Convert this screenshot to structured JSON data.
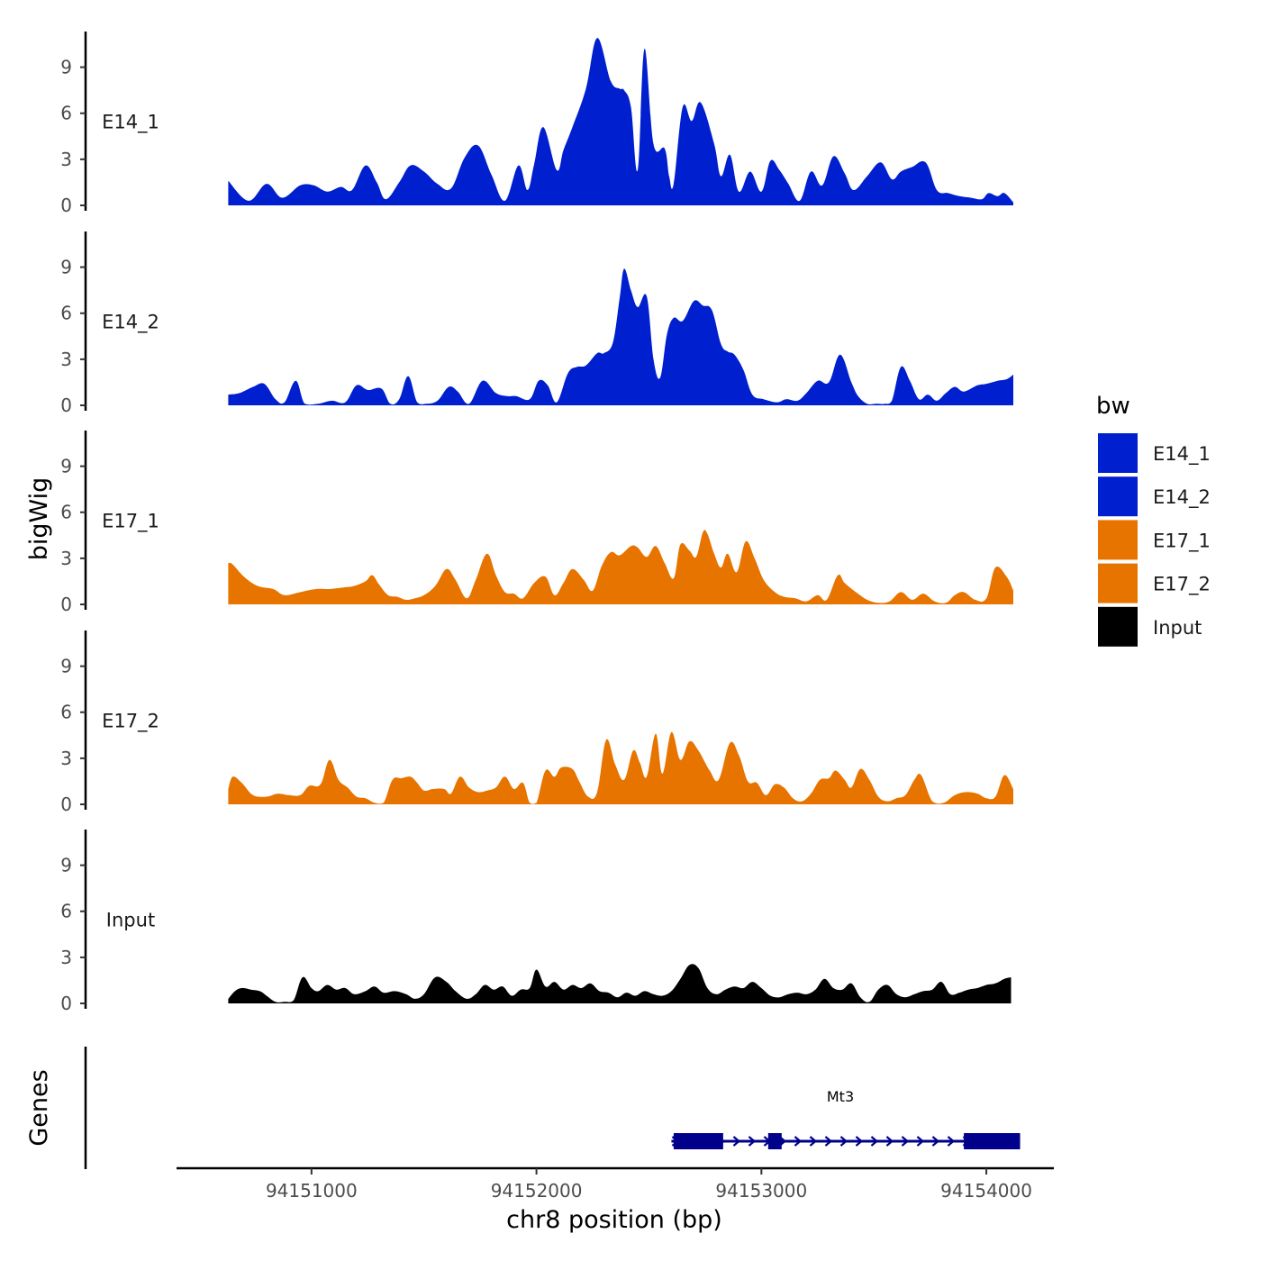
{
  "chart_data": {
    "type": "area",
    "xlabel": "chr8 position (bp)",
    "ylabel": "bigWig",
    "genes_label": "Genes",
    "xlim": [
      94150400,
      94154300
    ],
    "ylim": [
      0,
      11.5
    ],
    "x_ticks": [
      94151000,
      94152000,
      94153000,
      94154000
    ],
    "y_ticks": [
      0,
      3,
      6,
      9
    ],
    "legend": {
      "title": "bw",
      "items": [
        {
          "label": "E14_1",
          "color": "#0020d0"
        },
        {
          "label": "E14_2",
          "color": "#0020d0"
        },
        {
          "label": "E17_1",
          "color": "#e87400"
        },
        {
          "label": "E17_2",
          "color": "#e87400"
        },
        {
          "label": "Input",
          "color": "#000000"
        }
      ]
    },
    "series": [
      {
        "name": "E14_1",
        "color": "#0020d0",
        "x": [
          94150630,
          94150720,
          94150800,
          94150870,
          94150950,
          94151010,
          94151070,
          94151130,
          94151180,
          94151240,
          94151290,
          94151330,
          94151390,
          94151440,
          94151500,
          94151560,
          94151620,
          94151680,
          94151740,
          94151800,
          94151860,
          94151920,
          94151960,
          94151990,
          94152030,
          94152090,
          94152120,
          94152160,
          94152220,
          94152270,
          94152330,
          94152370,
          94152390,
          94152420,
          94152450,
          94152480,
          94152520,
          94152570,
          94152590,
          94152610,
          94152650,
          94152690,
          94152730,
          94152790,
          94152820,
          94152860,
          94152900,
          94152950,
          94153000,
          94153040,
          94153080,
          94153120,
          94153170,
          94153220,
          94153270,
          94153320,
          94153370,
          94153410,
          94153470,
          94153530,
          94153580,
          94153620,
          94153670,
          94153730,
          94153780,
          94153830,
          94153880,
          94153930,
          94153980,
          94154010,
          94154050,
          94154080,
          94154120
        ],
        "values": [
          1.6,
          0.3,
          1.4,
          0.5,
          1.3,
          1.3,
          0.9,
          1.2,
          1.0,
          2.6,
          1.5,
          0.4,
          1.5,
          2.6,
          2.2,
          1.4,
          1.1,
          3.1,
          3.9,
          2.0,
          0.3,
          2.6,
          1.0,
          2.7,
          5.1,
          2.3,
          3.6,
          5.1,
          7.6,
          10.9,
          8.1,
          7.6,
          7.5,
          6.4,
          2.3,
          10.2,
          4.0,
          3.7,
          1.9,
          1.4,
          6.4,
          5.5,
          6.7,
          4.0,
          1.9,
          3.3,
          0.9,
          2.2,
          0.9,
          2.9,
          2.3,
          1.4,
          0.3,
          2.2,
          1.3,
          3.2,
          2.1,
          1.0,
          1.9,
          2.8,
          1.7,
          2.2,
          2.5,
          2.8,
          1.0,
          0.8,
          0.6,
          0.5,
          0.4,
          0.8,
          0.6,
          0.8,
          0.2
        ],
        "label_y": 5.5
      },
      {
        "name": "E14_2",
        "color": "#0020d0",
        "x": [
          94150630,
          94150680,
          94150740,
          94150790,
          94150840,
          94150880,
          94150930,
          94150970,
          94151030,
          94151090,
          94151150,
          94151200,
          94151250,
          94151310,
          94151350,
          94151390,
          94151430,
          94151470,
          94151510,
          94151560,
          94151610,
          94151650,
          94151700,
          94151760,
          94151820,
          94151870,
          94151910,
          94151970,
          94152010,
          94152050,
          94152090,
          94152140,
          94152180,
          94152220,
          94152270,
          94152300,
          94152340,
          94152370,
          94152390,
          94152420,
          94152450,
          94152490,
          94152520,
          94152550,
          94152580,
          94152610,
          94152650,
          94152700,
          94152740,
          94152780,
          94152820,
          94152850,
          94152880,
          94152920,
          94152960,
          94153010,
          94153070,
          94153110,
          94153160,
          94153200,
          94153250,
          94153300,
          94153350,
          94153400,
          94153430,
          94153470,
          94153510,
          94153550,
          94153580,
          94153620,
          94153660,
          94153700,
          94153740,
          94153780,
          94153820,
          94153860,
          94153900,
          94153960,
          94154000,
          94154050,
          94154090,
          94154120
        ],
        "values": [
          0.7,
          0.8,
          1.2,
          1.4,
          0.4,
          0.2,
          1.6,
          0.1,
          0.1,
          0.3,
          0.2,
          1.3,
          1.0,
          1.1,
          0.1,
          0.4,
          1.9,
          0.2,
          0.1,
          0.3,
          1.2,
          0.9,
          0.1,
          1.6,
          0.8,
          0.6,
          0.6,
          0.4,
          1.6,
          1.3,
          0.2,
          2.1,
          2.5,
          2.6,
          3.4,
          3.4,
          4.1,
          7.0,
          8.9,
          7.5,
          6.4,
          7.1,
          3.0,
          1.8,
          4.6,
          5.7,
          5.5,
          6.8,
          6.5,
          6.2,
          4.0,
          3.5,
          3.3,
          2.3,
          0.7,
          0.4,
          0.2,
          0.4,
          0.3,
          0.8,
          1.6,
          1.5,
          3.3,
          1.5,
          0.6,
          0.1,
          0.1,
          0.1,
          0.3,
          2.5,
          1.6,
          0.4,
          0.7,
          0.3,
          0.8,
          1.2,
          0.9,
          1.3,
          1.4,
          1.6,
          1.7,
          2.0
        ],
        "label_y": 5.5
      },
      {
        "name": "E17_1",
        "color": "#e87400",
        "x": [
          94150630,
          94150650,
          94150700,
          94150760,
          94150830,
          94150880,
          94150950,
          94151020,
          94151080,
          94151140,
          94151190,
          94151240,
          94151270,
          94151300,
          94151340,
          94151380,
          94151420,
          94151460,
          94151500,
          94151550,
          94151600,
          94151640,
          94151690,
          94151730,
          94151780,
          94151820,
          94151860,
          94151900,
          94151940,
          94151990,
          94152040,
          94152080,
          94152120,
          94152160,
          94152210,
          94152250,
          94152290,
          94152330,
          94152370,
          94152420,
          94152450,
          94152490,
          94152530,
          94152570,
          94152610,
          94152640,
          94152680,
          94152710,
          94152740,
          94152760,
          94152790,
          94152820,
          94152850,
          94152890,
          94152930,
          94152970,
          94153010,
          94153060,
          94153100,
          94153150,
          94153200,
          94153250,
          94153290,
          94153340,
          94153370,
          94153420,
          94153470,
          94153520,
          94153570,
          94153620,
          94153670,
          94153720,
          94153770,
          94153820,
          94153860,
          94153900,
          94153950,
          94154000,
          94154040,
          94154090,
          94154120
        ],
        "values": [
          2.7,
          2.6,
          1.8,
          1.2,
          1.0,
          0.6,
          0.8,
          1.0,
          1.0,
          1.1,
          1.2,
          1.5,
          1.9,
          1.3,
          0.6,
          0.5,
          0.3,
          0.4,
          0.6,
          1.2,
          2.3,
          1.6,
          0.4,
          1.6,
          3.3,
          1.9,
          0.8,
          0.7,
          0.4,
          1.4,
          1.8,
          0.6,
          1.4,
          2.3,
          1.6,
          0.9,
          2.5,
          3.4,
          3.2,
          3.8,
          3.7,
          3.1,
          3.8,
          2.7,
          1.7,
          3.9,
          3.5,
          3.1,
          4.7,
          4.6,
          3.3,
          2.4,
          3.3,
          2.1,
          4.1,
          3.0,
          1.6,
          0.8,
          0.5,
          0.4,
          0.2,
          0.6,
          0.3,
          1.9,
          1.4,
          0.8,
          0.3,
          0.1,
          0.2,
          0.8,
          0.3,
          0.7,
          0.2,
          0.1,
          0.6,
          0.8,
          0.3,
          0.4,
          2.4,
          1.8,
          0.9
        ],
        "label_y": 5.5
      },
      {
        "name": "E17_2",
        "color": "#e87400",
        "x": [
          94150630,
          94150650,
          94150690,
          94150740,
          94150800,
          94150850,
          94150900,
          94150950,
          94150990,
          94151040,
          94151080,
          94151120,
          94151160,
          94151200,
          94151240,
          94151280,
          94151320,
          94151360,
          94151400,
          94151440,
          94151470,
          94151500,
          94151540,
          94151590,
          94151620,
          94151660,
          94151700,
          94151740,
          94151780,
          94151820,
          94151860,
          94151900,
          94151940,
          94151970,
          94152000,
          94152040,
          94152080,
          94152110,
          94152160,
          94152190,
          94152230,
          94152270,
          94152310,
          94152350,
          94152390,
          94152430,
          94152460,
          94152490,
          94152530,
          94152560,
          94152600,
          94152640,
          94152680,
          94152720,
          94152770,
          94152810,
          94152860,
          94152900,
          94152940,
          94152980,
          94153020,
          94153060,
          94153100,
          94153140,
          94153180,
          94153220,
          94153260,
          94153300,
          94153330,
          94153370,
          94153400,
          94153440,
          94153480,
          94153520,
          94153560,
          94153600,
          94153640,
          94153680,
          94153710,
          94153760,
          94153810,
          94153860,
          94153910,
          94153960,
          94154000,
          94154040,
          94154080,
          94154120
        ],
        "values": [
          1.0,
          1.8,
          1.4,
          0.6,
          0.5,
          0.7,
          0.6,
          0.6,
          1.2,
          1.3,
          2.9,
          1.6,
          1.1,
          0.5,
          0.4,
          0.1,
          0.1,
          1.6,
          1.7,
          1.8,
          1.4,
          0.9,
          1.0,
          1.0,
          0.7,
          1.8,
          1.1,
          0.8,
          0.9,
          1.1,
          1.8,
          1.0,
          1.4,
          0.1,
          0.1,
          2.2,
          1.8,
          2.4,
          2.3,
          1.5,
          0.5,
          0.8,
          4.2,
          2.6,
          1.6,
          3.5,
          2.7,
          1.8,
          4.6,
          2.0,
          4.7,
          2.9,
          4.1,
          3.5,
          2.2,
          1.6,
          4.0,
          3.2,
          1.5,
          1.4,
          0.6,
          1.3,
          1.1,
          0.4,
          0.2,
          0.7,
          1.6,
          1.7,
          2.2,
          1.6,
          1.1,
          2.3,
          1.6,
          0.5,
          0.2,
          0.4,
          0.6,
          1.6,
          1.9,
          0.2,
          0.1,
          0.6,
          0.8,
          0.7,
          0.4,
          0.5,
          1.9,
          1.0
        ],
        "label_y": 5.5
      },
      {
        "name": "Input",
        "color": "#000000",
        "x": [
          94150630,
          94150660,
          94150690,
          94150730,
          94150770,
          94150800,
          94150840,
          94150880,
          94150920,
          94150960,
          94151000,
          94151030,
          94151070,
          94151110,
          94151150,
          94151190,
          94151240,
          94151280,
          94151320,
          94151370,
          94151420,
          94151460,
          94151500,
          94151550,
          94151600,
          94151640,
          94151690,
          94151730,
          94151770,
          94151810,
          94151850,
          94151890,
          94151930,
          94151970,
          94152000,
          94152040,
          94152080,
          94152120,
          94152160,
          94152200,
          94152240,
          94152280,
          94152320,
          94152360,
          94152400,
          94152440,
          94152480,
          94152520,
          94152560,
          94152600,
          94152640,
          94152680,
          94152720,
          94152760,
          94152800,
          94152840,
          94152880,
          94152920,
          94152960,
          94153000,
          94153040,
          94153080,
          94153120,
          94153160,
          94153200,
          94153240,
          94153280,
          94153320,
          94153360,
          94153400,
          94153440,
          94153480,
          94153520,
          94153560,
          94153600,
          94153640,
          94153680,
          94153720,
          94153760,
          94153800,
          94153840,
          94153880,
          94153920,
          94153960,
          94154000,
          94154040,
          94154080,
          94154110
        ],
        "values": [
          0.3,
          0.8,
          1.0,
          0.9,
          0.8,
          0.5,
          0.1,
          0.1,
          0.2,
          1.7,
          1.0,
          0.8,
          1.2,
          0.9,
          1.0,
          0.6,
          0.8,
          1.1,
          0.7,
          0.8,
          0.6,
          0.3,
          0.6,
          1.7,
          1.4,
          0.8,
          0.3,
          0.6,
          1.2,
          0.9,
          1.1,
          0.5,
          0.9,
          1.0,
          2.2,
          1.1,
          1.4,
          0.9,
          1.2,
          1.0,
          1.3,
          0.8,
          0.7,
          0.4,
          0.7,
          0.5,
          0.8,
          0.6,
          0.5,
          0.8,
          1.6,
          2.5,
          2.3,
          1.0,
          0.6,
          0.9,
          1.1,
          1.0,
          1.4,
          1.0,
          0.5,
          0.4,
          0.6,
          0.7,
          0.6,
          0.9,
          1.6,
          1.0,
          0.9,
          1.3,
          0.4,
          0.1,
          0.9,
          1.2,
          0.6,
          0.4,
          0.6,
          0.8,
          0.9,
          1.4,
          0.6,
          0.7,
          0.9,
          1.0,
          1.2,
          1.3,
          1.6,
          1.7
        ],
        "label_y": 5.5
      }
    ],
    "genes": [
      {
        "name": "Mt3",
        "strand": "+",
        "color": "#00008b",
        "start": 94152600,
        "end": 94154150,
        "exons": [
          [
            94152610,
            94152830
          ],
          [
            94153030,
            94153090
          ],
          [
            94153900,
            94154150
          ]
        ]
      }
    ]
  }
}
